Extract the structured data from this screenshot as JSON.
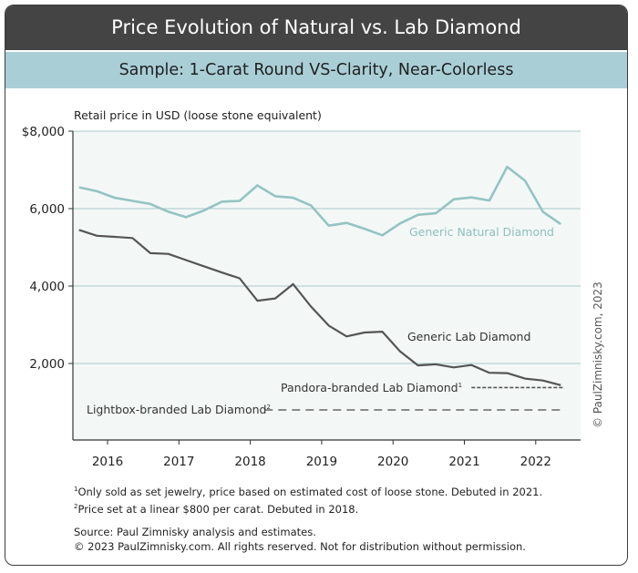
{
  "header": {
    "title": "Price Evolution of Natural vs. Lab Diamond",
    "subtitle": "Sample: 1-Carat Round VS-Clarity, Near-Colorless"
  },
  "chart_data": {
    "type": "line",
    "ylabel": "Retail price in USD (loose stone equivalent)",
    "ylim": [
      0,
      8000
    ],
    "xlim": [
      2015.6,
      2022.6
    ],
    "y_ticks": [
      {
        "value": 8000,
        "label": "$8,000"
      },
      {
        "value": 6000,
        "label": "6,000"
      },
      {
        "value": 4000,
        "label": "4,000"
      },
      {
        "value": 2000,
        "label": "2,000"
      }
    ],
    "x_ticks": [
      "2016",
      "2017",
      "2018",
      "2019",
      "2020",
      "2021",
      "2022"
    ],
    "grid": true,
    "colors": {
      "natural": "#94c4c2",
      "lab": "#555555",
      "pandora": "#555555",
      "lightbox": "#666666",
      "plot_bg": "#f3f8f7",
      "grid": "#a9c9c7"
    },
    "series": [
      {
        "name": "Generic Natural Diamond",
        "x": [
          2015.6,
          2015.85,
          2016.1,
          2016.35,
          2016.6,
          2016.85,
          2017.1,
          2017.35,
          2017.6,
          2017.85,
          2018.1,
          2018.35,
          2018.6,
          2018.85,
          2019.1,
          2019.35,
          2019.6,
          2019.85,
          2020.1,
          2020.35,
          2020.6,
          2020.85,
          2021.1,
          2021.35,
          2021.6,
          2021.85,
          2022.1,
          2022.35
        ],
        "values": [
          6550,
          6450,
          6280,
          6200,
          6120,
          5920,
          5780,
          5950,
          6180,
          6200,
          6600,
          6320,
          6280,
          6080,
          5560,
          5630,
          5480,
          5310,
          5620,
          5840,
          5880,
          6240,
          6290,
          6210,
          7080,
          6720,
          5920,
          5600
        ]
      },
      {
        "name": "Generic Lab Diamond",
        "x": [
          2015.6,
          2015.85,
          2016.1,
          2016.35,
          2016.6,
          2016.85,
          2017.1,
          2017.35,
          2017.6,
          2017.85,
          2018.1,
          2018.35,
          2018.6,
          2018.85,
          2019.1,
          2019.35,
          2019.6,
          2019.85,
          2020.1,
          2020.35,
          2020.6,
          2020.85,
          2021.1,
          2021.35,
          2021.6,
          2021.85,
          2022.1,
          2022.35
        ],
        "values": [
          5450,
          5300,
          5270,
          5240,
          4850,
          4830,
          4670,
          4510,
          4350,
          4200,
          3620,
          3680,
          4050,
          3470,
          2980,
          2700,
          2800,
          2820,
          2310,
          1950,
          1980,
          1900,
          1960,
          1760,
          1750,
          1610,
          1560,
          1440
        ]
      },
      {
        "name": "Pandora-branded Lab Diamond",
        "sup": "1",
        "x": [
          2021.1,
          2022.4
        ],
        "values": [
          1380,
          1380
        ],
        "style": "dashed"
      },
      {
        "name": "Lightbox-branded Lab Diamond",
        "sup": "2",
        "x": [
          2018.2,
          2022.4
        ],
        "values": [
          800,
          800
        ],
        "style": "dashed"
      }
    ],
    "watermark": "© PaulZimnisky.com, 2023"
  },
  "footnotes": [
    {
      "sup": "1",
      "text": "Only sold as set jewelry, price based on estimated cost of loose stone. Debuted in 2021."
    },
    {
      "sup": "2",
      "text": "Price set at a linear $800 per carat. Debuted in 2018."
    }
  ],
  "source": {
    "line1": "Source: Paul Zimnisky analysis and estimates.",
    "line2": "© 2023 PaulZimnisky.com. All rights reserved. Not for distribution without permission."
  }
}
